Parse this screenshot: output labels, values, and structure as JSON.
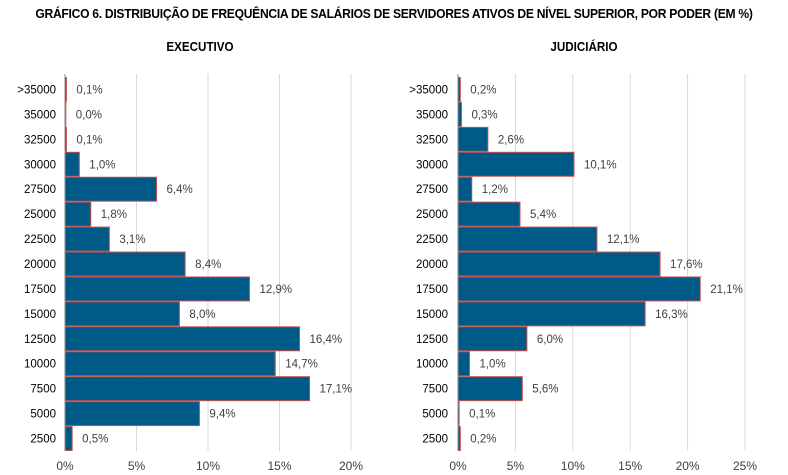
{
  "title": "GRÁFICO 6. DISTRIBUIÇÃO DE FREQUÊNCIA DE SALÁRIOS DE SERVIDORES ATIVOS DE NÍVEL SUPERIOR, POR PODER (EM %)",
  "colors": {
    "bar_fill": "#005A87",
    "bar_stroke": "#C0504D",
    "grid": "#D9D9D9",
    "text": "#404040"
  },
  "chart_data": [
    {
      "type": "bar",
      "orientation": "horizontal",
      "title": "EXECUTIVO",
      "xlabel": "",
      "ylabel": "",
      "categories": [
        ">35000",
        "35000",
        "32500",
        "30000",
        "27500",
        "25000",
        "22500",
        "20000",
        "17500",
        "15000",
        "12500",
        "10000",
        "7500",
        "5000",
        "2500"
      ],
      "values": [
        0.1,
        0.0,
        0.1,
        1.0,
        6.4,
        1.8,
        3.1,
        8.4,
        12.9,
        8.0,
        16.4,
        14.7,
        17.1,
        9.4,
        0.5
      ],
      "data_labels": [
        "0,1%",
        "0,0%",
        "0,1%",
        "1,0%",
        "6,4%",
        "1,8%",
        "3,1%",
        "8,4%",
        "12,9%",
        "8,0%",
        "16,4%",
        "14,7%",
        "17,1%",
        "9,4%",
        "0,5%"
      ],
      "xlim": [
        0,
        20
      ],
      "xticks": [
        "0%",
        "5%",
        "10%",
        "15%",
        "20%"
      ],
      "grid": true
    },
    {
      "type": "bar",
      "orientation": "horizontal",
      "title": "JUDICIÁRIO",
      "xlabel": "",
      "ylabel": "",
      "categories": [
        ">35000",
        "35000",
        "32500",
        "30000",
        "27500",
        "25000",
        "22500",
        "20000",
        "17500",
        "15000",
        "12500",
        "10000",
        "7500",
        "5000",
        "2500"
      ],
      "values": [
        0.2,
        0.3,
        2.6,
        10.1,
        1.2,
        5.4,
        12.1,
        17.6,
        21.1,
        16.3,
        6.0,
        1.0,
        5.6,
        0.1,
        0.2
      ],
      "data_labels": [
        "0,2%",
        "0,3%",
        "2,6%",
        "10,1%",
        "1,2%",
        "5,4%",
        "12,1%",
        "17,6%",
        "21,1%",
        "16,3%",
        "6,0%",
        "1,0%",
        "5,6%",
        "0,1%",
        "0,2%"
      ],
      "xlim": [
        0,
        25
      ],
      "xticks": [
        "0%",
        "5%",
        "10%",
        "15%",
        "20%",
        "25%"
      ],
      "grid": true
    }
  ]
}
